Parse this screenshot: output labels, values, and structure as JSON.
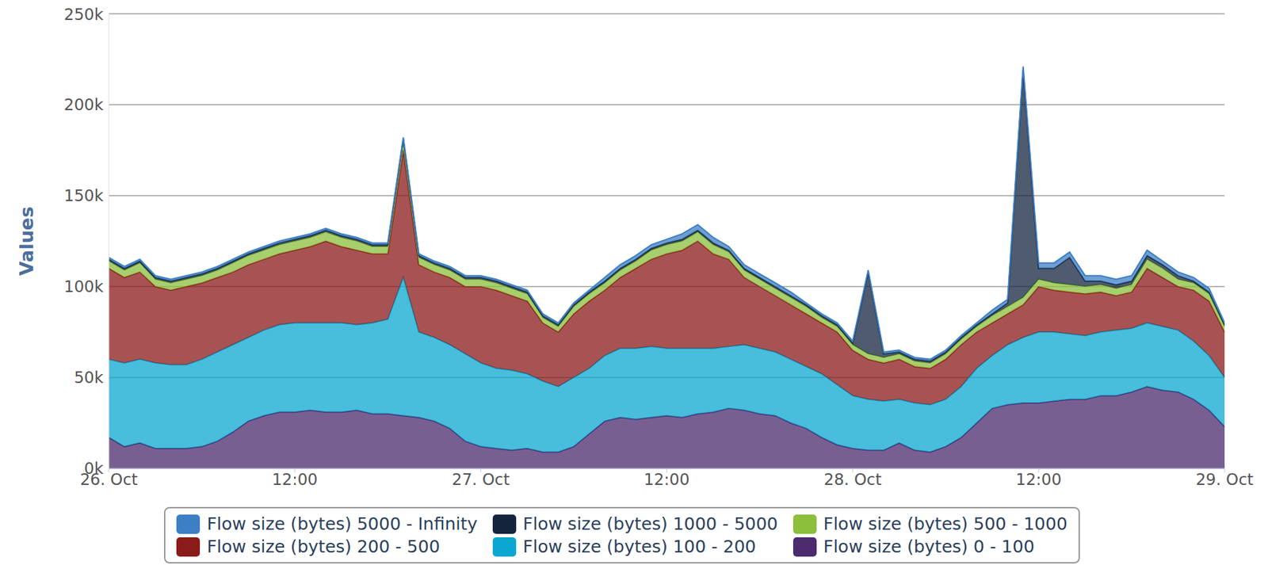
{
  "chart_data": {
    "type": "area",
    "stacked": true,
    "grid": true,
    "legend": "bottom",
    "y_label": "Values",
    "x": [
      0,
      1,
      2,
      3,
      4,
      5,
      6,
      7,
      8,
      9,
      10,
      11,
      12,
      13,
      14,
      15,
      16,
      17,
      18,
      19,
      20,
      21,
      22,
      23,
      24,
      25,
      26,
      27,
      28,
      29,
      30,
      31,
      32,
      33,
      34,
      35,
      36,
      37,
      38,
      39,
      40,
      41,
      42,
      43,
      44,
      45,
      46,
      47,
      48,
      49,
      50,
      51,
      52,
      53,
      54,
      55,
      56,
      57,
      58,
      59,
      60,
      61,
      62,
      63,
      64,
      65,
      66,
      67,
      68,
      69,
      70,
      71,
      72
    ],
    "xlim": [
      0,
      72
    ],
    "xticks": [
      {
        "value": 0,
        "label": "26. Oct"
      },
      {
        "value": 12,
        "label": "12:00"
      },
      {
        "value": 24,
        "label": "27. Oct"
      },
      {
        "value": 36,
        "label": "12:00"
      },
      {
        "value": 48,
        "label": "28. Oct"
      },
      {
        "value": 60,
        "label": "12:00"
      },
      {
        "value": 72,
        "label": "29. Oct"
      }
    ],
    "ylim": [
      0,
      250000
    ],
    "yticks": [
      {
        "value": 0,
        "label": "0k"
      },
      {
        "value": 50000,
        "label": "50k"
      },
      {
        "value": 100000,
        "label": "100k"
      },
      {
        "value": 150000,
        "label": "150k"
      },
      {
        "value": 200000,
        "label": "200k"
      },
      {
        "value": 250000,
        "label": "250k"
      }
    ],
    "series": [
      {
        "name": "Flow size (bytes) 5000 - Infinity",
        "color": "#3d7fc4",
        "values": [
          1000,
          1000,
          1000,
          1000,
          1000,
          1000,
          1000,
          1000,
          1000,
          1000,
          1000,
          1000,
          1000,
          1000,
          1000,
          1000,
          1000,
          1000,
          1000,
          1000,
          1000,
          1000,
          1000,
          1000,
          1000,
          1000,
          1000,
          1000,
          1000,
          1000,
          1000,
          1000,
          2000,
          2000,
          2000,
          2000,
          2000,
          3000,
          3000,
          3000,
          2000,
          2000,
          2000,
          2000,
          2000,
          1000,
          1000,
          1000,
          1000,
          1000,
          1000,
          1000,
          1000,
          1000,
          1000,
          1000,
          1000,
          2000,
          2000,
          2000,
          3000,
          3000,
          3000,
          3000,
          3000,
          3000,
          3000,
          3000,
          2000,
          2000,
          2000,
          2000,
          1000
        ]
      },
      {
        "name": "Flow size (bytes) 1000 - 5000",
        "color": "#14243d",
        "values": [
          1000,
          1000,
          1000,
          1000,
          1000,
          1000,
          1000,
          1000,
          1000,
          1000,
          1000,
          1000,
          1000,
          1000,
          1000,
          1000,
          1000,
          1000,
          1000,
          1000,
          1000,
          1000,
          1000,
          1000,
          1000,
          1000,
          1000,
          1000,
          1000,
          1000,
          1000,
          1000,
          1000,
          1000,
          1000,
          1000,
          1000,
          1000,
          1000,
          1000,
          1000,
          1000,
          1000,
          1000,
          1000,
          1000,
          1000,
          1000,
          1000,
          45000,
          2000,
          1000,
          1000,
          1000,
          1000,
          1000,
          1000,
          1000,
          2000,
          125000,
          6000,
          8000,
          15000,
          3000,
          2000,
          2000,
          2000,
          2000,
          2000,
          2000,
          1000,
          1000,
          1000
        ]
      },
      {
        "name": "Flow size (bytes) 500 - 1000",
        "color": "#8bbf3c",
        "values": [
          4000,
          4000,
          5000,
          4000,
          4000,
          4000,
          4000,
          4000,
          5000,
          5000,
          5000,
          5000,
          5000,
          5000,
          5000,
          5000,
          5000,
          4000,
          4000,
          5000,
          4000,
          4000,
          4000,
          4000,
          4000,
          4000,
          4000,
          4000,
          3000,
          3000,
          4000,
          4000,
          4000,
          4000,
          4000,
          5000,
          5000,
          5000,
          5000,
          5000,
          4000,
          4000,
          4000,
          4000,
          4000,
          4000,
          3000,
          3000,
          3000,
          3000,
          3000,
          3000,
          3000,
          3000,
          3000,
          3000,
          3000,
          4000,
          4000,
          4000,
          4000,
          4000,
          4000,
          4000,
          4000,
          4000,
          4000,
          5000,
          5000,
          4000,
          4000,
          4000,
          3000
        ]
      },
      {
        "name": "Flow size (bytes) 200 - 500",
        "color": "#8b1a1a",
        "values": [
          50000,
          47000,
          48000,
          42000,
          41000,
          43000,
          42000,
          41000,
          40000,
          40000,
          39000,
          39000,
          40000,
          42000,
          45000,
          42000,
          41000,
          38000,
          36000,
          70000,
          37000,
          36000,
          37000,
          37000,
          42000,
          43000,
          41000,
          40000,
          32000,
          30000,
          35000,
          37000,
          36000,
          39000,
          44000,
          48000,
          52000,
          54000,
          59000,
          52000,
          48000,
          37000,
          34000,
          31000,
          30000,
          29000,
          28000,
          29000,
          25000,
          22000,
          21000,
          22000,
          20000,
          20000,
          22000,
          23000,
          20000,
          18000,
          17000,
          18000,
          25000,
          23000,
          23000,
          23000,
          22000,
          19000,
          20000,
          30000,
          27000,
          24000,
          28000,
          30000,
          25000
        ]
      },
      {
        "name": "Flow size (bytes) 100 - 200",
        "color": "#0ba7d0",
        "values": [
          43000,
          46000,
          46000,
          47000,
          46000,
          46000,
          48000,
          49000,
          48000,
          46000,
          47000,
          48000,
          49000,
          48000,
          49000,
          49000,
          47000,
          50000,
          52000,
          76000,
          47000,
          46000,
          46000,
          48000,
          46000,
          44000,
          44000,
          41000,
          39000,
          36000,
          38000,
          36000,
          36000,
          38000,
          39000,
          39000,
          37000,
          38000,
          36000,
          35000,
          34000,
          36000,
          36000,
          35000,
          35000,
          34000,
          35000,
          33000,
          29000,
          28000,
          27000,
          24000,
          26000,
          26000,
          26000,
          28000,
          30000,
          29000,
          33000,
          36000,
          39000,
          38000,
          36000,
          35000,
          35000,
          36000,
          35000,
          35000,
          35000,
          34000,
          32000,
          30000,
          27000
        ]
      },
      {
        "name": "Flow size (bytes) 0 - 100",
        "color": "#4b2a6e",
        "values": [
          17000,
          12000,
          14000,
          11000,
          11000,
          11000,
          12000,
          15000,
          20000,
          26000,
          29000,
          31000,
          31000,
          32000,
          31000,
          31000,
          32000,
          30000,
          30000,
          29000,
          28000,
          26000,
          22000,
          15000,
          12000,
          11000,
          10000,
          11000,
          9000,
          9000,
          12000,
          19000,
          26000,
          28000,
          27000,
          28000,
          29000,
          28000,
          30000,
          31000,
          33000,
          32000,
          30000,
          29000,
          25000,
          22000,
          17000,
          13000,
          11000,
          10000,
          10000,
          14000,
          10000,
          9000,
          12000,
          17000,
          25000,
          33000,
          35000,
          36000,
          36000,
          37000,
          38000,
          38000,
          40000,
          40000,
          42000,
          45000,
          43000,
          42000,
          38000,
          32000,
          23000
        ]
      }
    ]
  }
}
